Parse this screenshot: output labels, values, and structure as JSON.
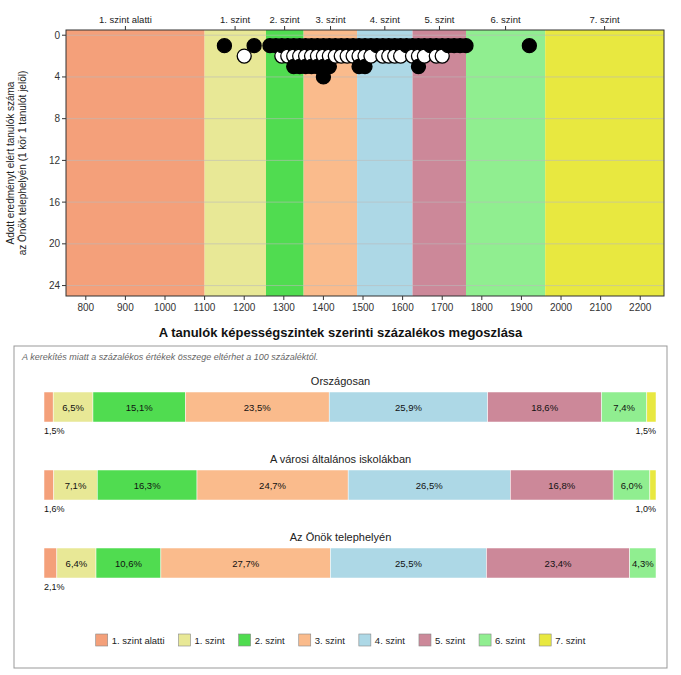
{
  "chart_data": [
    {
      "type": "scatter",
      "ylabel": "Adott eredményt elért tanulók száma\naz Önök telephelyén (1 kör 1 tanulót jelöl)",
      "x": [
        1150,
        1200,
        1225,
        1265,
        1280,
        1295,
        1295,
        1310,
        1310,
        1325,
        1325,
        1325,
        1340,
        1340,
        1340,
        1355,
        1355,
        1355,
        1370,
        1370,
        1370,
        1385,
        1385,
        1385,
        1400,
        1400,
        1400,
        1400,
        1415,
        1415,
        1415,
        1430,
        1430,
        1445,
        1445,
        1460,
        1460,
        1475,
        1475,
        1490,
        1490,
        1490,
        1505,
        1505,
        1505,
        1520,
        1520,
        1535,
        1550,
        1550,
        1565,
        1565,
        1580,
        1580,
        1595,
        1595,
        1610,
        1625,
        1625,
        1640,
        1640,
        1640,
        1655,
        1655,
        1670,
        1685,
        1685,
        1700,
        1700,
        1715,
        1730,
        1745,
        1760,
        1920
      ],
      "values": [
        1,
        2,
        1,
        1,
        1,
        2,
        1,
        1,
        2,
        1,
        2,
        3,
        1,
        2,
        3,
        1,
        2,
        3,
        1,
        2,
        3,
        1,
        2,
        3,
        1,
        2,
        3,
        4,
        1,
        2,
        3,
        1,
        2,
        1,
        2,
        1,
        2,
        1,
        2,
        1,
        2,
        3,
        1,
        2,
        3,
        1,
        2,
        1,
        1,
        2,
        1,
        2,
        1,
        2,
        1,
        2,
        1,
        1,
        2,
        1,
        2,
        3,
        1,
        2,
        1,
        1,
        2,
        1,
        2,
        1,
        1,
        1,
        1,
        1
      ],
      "colors": [
        "black",
        "white",
        "black",
        "black",
        "black",
        "white",
        "black",
        "black",
        "white",
        "black",
        "white",
        "black",
        "black",
        "white",
        "black",
        "black",
        "white",
        "black",
        "black",
        "white",
        "black",
        "black",
        "white",
        "black",
        "black",
        "white",
        "black",
        "black",
        "black",
        "white",
        "black",
        "black",
        "white",
        "black",
        "white",
        "black",
        "white",
        "black",
        "white",
        "black",
        "white",
        "black",
        "black",
        "white",
        "black",
        "black",
        "white",
        "black",
        "black",
        "white",
        "black",
        "white",
        "black",
        "white",
        "black",
        "white",
        "black",
        "black",
        "white",
        "black",
        "white",
        "black",
        "black",
        "white",
        "black",
        "black",
        "white",
        "black",
        "white",
        "black",
        "black",
        "black",
        "black",
        "black"
      ],
      "xlim": [
        750,
        2260
      ],
      "ylim": [
        25,
        -0.5
      ],
      "xticks": [
        800,
        900,
        1000,
        1100,
        1200,
        1300,
        1400,
        1500,
        1600,
        1700,
        1800,
        1900,
        2000,
        2100,
        2200
      ],
      "yticks": [
        0,
        4,
        8,
        12,
        16,
        20,
        24
      ],
      "grid": true,
      "bands": [
        {
          "xmin": 750,
          "xmax": 1100,
          "color": "#F4A07A"
        },
        {
          "xmin": 1100,
          "xmax": 1255,
          "color": "#E8E896"
        },
        {
          "xmin": 1255,
          "xmax": 1350,
          "color": "#50DC50"
        },
        {
          "xmin": 1350,
          "xmax": 1485,
          "color": "#FABB8C"
        },
        {
          "xmin": 1485,
          "xmax": 1625,
          "color": "#ADD8E6"
        },
        {
          "xmin": 1625,
          "xmax": 1760,
          "color": "#CC8899"
        },
        {
          "xmin": 1760,
          "xmax": 1960,
          "color": "#90EE90"
        },
        {
          "xmin": 1960,
          "xmax": 2260,
          "color": "#E8E840"
        }
      ],
      "x2ticks": [
        {
          "value": 900,
          "label": "1. szint alatti"
        },
        {
          "value": 1177,
          "label": "1. szint"
        },
        {
          "value": 1302,
          "label": "2. szint"
        },
        {
          "value": 1418,
          "label": "3. szint"
        },
        {
          "value": 1555,
          "label": "4. szint"
        },
        {
          "value": 1693,
          "label": "5. szint"
        },
        {
          "value": 1860,
          "label": "6. szint"
        },
        {
          "value": 2110,
          "label": "7. szint"
        }
      ]
    },
    {
      "type": "bar",
      "orientation": "horizontal",
      "stacked": true,
      "data_labels": true,
      "title": "A tanulók képességszintek szerinti százalékos megoszlása",
      "subtitle": "A kerekítés miatt a százalékos értékek összege eltérhet a 100 százaléktól.",
      "categories": [
        "Országosan",
        "A városi általános iskolákban",
        "Az Önök telephelyén"
      ],
      "xlim": [
        0,
        100
      ],
      "tick_labels": false,
      "legend": "bottom",
      "series": [
        {
          "name": "1. szint alatti",
          "color": "#F4A07A",
          "values": [
            1.5,
            1.6,
            2.1
          ],
          "value_labels": [
            "1,5%",
            "1,6%",
            "2,1%"
          ]
        },
        {
          "name": "1. szint",
          "color": "#E8E896",
          "values": [
            6.5,
            7.1,
            6.4
          ],
          "value_labels": [
            "6,5%",
            "7,1%",
            "6,4%"
          ]
        },
        {
          "name": "2. szint",
          "color": "#50DC50",
          "values": [
            15.1,
            16.3,
            10.6
          ],
          "value_labels": [
            "15,1%",
            "16,3%",
            "10,6%"
          ]
        },
        {
          "name": "3. szint",
          "color": "#FABB8C",
          "values": [
            23.5,
            24.7,
            27.7
          ],
          "value_labels": [
            "23,5%",
            "24,7%",
            "27,7%"
          ]
        },
        {
          "name": "4. szint",
          "color": "#ADD8E6",
          "values": [
            25.9,
            26.5,
            25.5
          ],
          "value_labels": [
            "25,9%",
            "26,5%",
            "25,5%"
          ]
        },
        {
          "name": "5. szint",
          "color": "#CC8899",
          "values": [
            18.6,
            16.8,
            23.4
          ],
          "value_labels": [
            "18,6%",
            "16,8%",
            "23,4%"
          ]
        },
        {
          "name": "6. szint",
          "color": "#90EE90",
          "values": [
            7.4,
            6.0,
            4.3
          ],
          "value_labels": [
            "7,4%",
            "6,0%",
            "4,3%"
          ]
        },
        {
          "name": "7. szint",
          "color": "#E8E840",
          "values": [
            1.5,
            1.0,
            0.0
          ],
          "value_labels": [
            "1,5%",
            "1,0%",
            null
          ]
        }
      ]
    }
  ]
}
